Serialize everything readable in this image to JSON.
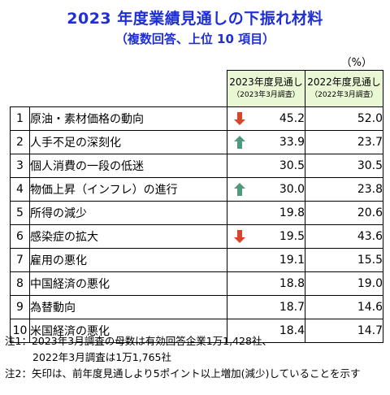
{
  "title": "2023 年度業績見通しの下振れ材料",
  "subtitle": "（複数回答、上位 10 項目）",
  "unit": "（%）",
  "headers": {
    "col2023_main": "2023年度見通し",
    "col2023_sub": "（2023年3月調査）",
    "col2022_main": "2022年度見通し",
    "col2022_sub": "（2022年3月調査）"
  },
  "rows": [
    {
      "rank": "1",
      "label": "原油・素材価格の動向",
      "v2023": "45.2",
      "v2022": "52.0",
      "arrow": "down"
    },
    {
      "rank": "2",
      "label": "人手不足の深刻化",
      "v2023": "33.9",
      "v2022": "23.7",
      "arrow": "up"
    },
    {
      "rank": "3",
      "label": "個人消費の一段の低迷",
      "v2023": "30.5",
      "v2022": "30.5",
      "arrow": ""
    },
    {
      "rank": "4",
      "label": "物価上昇（インフレ）の進行",
      "v2023": "30.0",
      "v2022": "23.8",
      "arrow": "up"
    },
    {
      "rank": "5",
      "label": "所得の減少",
      "v2023": "19.8",
      "v2022": "20.6",
      "arrow": ""
    },
    {
      "rank": "6",
      "label": "感染症の拡大",
      "v2023": "19.5",
      "v2022": "43.6",
      "arrow": "down"
    },
    {
      "rank": "7",
      "label": "雇用の悪化",
      "v2023": "19.1",
      "v2022": "15.5",
      "arrow": ""
    },
    {
      "rank": "8",
      "label": "中国経済の悪化",
      "v2023": "18.8",
      "v2022": "19.0",
      "arrow": ""
    },
    {
      "rank": "9",
      "label": "為替動向",
      "v2023": "18.7",
      "v2022": "14.6",
      "arrow": ""
    },
    {
      "rank": "10",
      "label": "米国経済の悪化",
      "v2023": "18.4",
      "v2022": "14.7",
      "arrow": ""
    }
  ],
  "notes": {
    "note1_line1": "注1：2023年3月調査の母数は有効回答企業1万1,428社、",
    "note1_line2": "2022年3月調査は1万1,765社",
    "note2": "注2：矢印は、前年度見通しより5ポイント以上増加(減少)していることを示す"
  },
  "colors": {
    "title": "#1f2fd6",
    "header_bg": "#e9f7d4",
    "arrow_up": "#4f9a7d",
    "arrow_down": "#d9452a"
  }
}
